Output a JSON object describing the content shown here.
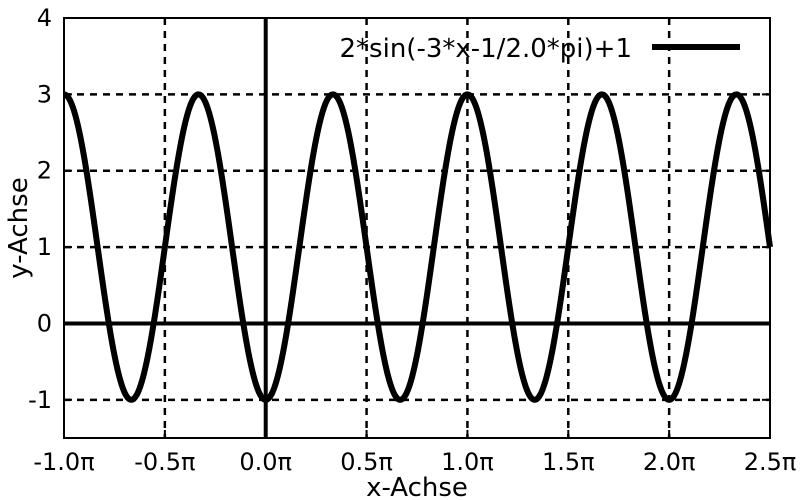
{
  "chart_data": {
    "type": "line",
    "xlabel": "x-Achse",
    "ylabel": "y-Achse",
    "xlim": [
      -1.0,
      2.5
    ],
    "xlim_unit": "π",
    "ylim": [
      -1.5,
      4
    ],
    "grid": true,
    "grid_style": "dashed",
    "legend_position": "top-right",
    "x_ticks": [
      {
        "value": -1.0,
        "label": "-1.0π"
      },
      {
        "value": -0.5,
        "label": "-0.5π"
      },
      {
        "value": 0.0,
        "label": "0.0π"
      },
      {
        "value": 0.5,
        "label": "0.5π"
      },
      {
        "value": 1.0,
        "label": "1.0π"
      },
      {
        "value": 1.5,
        "label": "1.5π"
      },
      {
        "value": 2.0,
        "label": "2.0π"
      },
      {
        "value": 2.5,
        "label": "2.5π"
      }
    ],
    "y_ticks": [
      {
        "value": -1,
        "label": "-1"
      },
      {
        "value": 0,
        "label": "0"
      },
      {
        "value": 1,
        "label": "1"
      },
      {
        "value": 2,
        "label": "2"
      },
      {
        "value": 3,
        "label": "3"
      },
      {
        "value": 4,
        "label": "4"
      }
    ],
    "series": [
      {
        "name": "2*sin(-3*x-1/2.0*pi)+1",
        "expression": "2*sin(-3*x-1/2.0*pi)+1",
        "color": "#000000"
      }
    ]
  }
}
